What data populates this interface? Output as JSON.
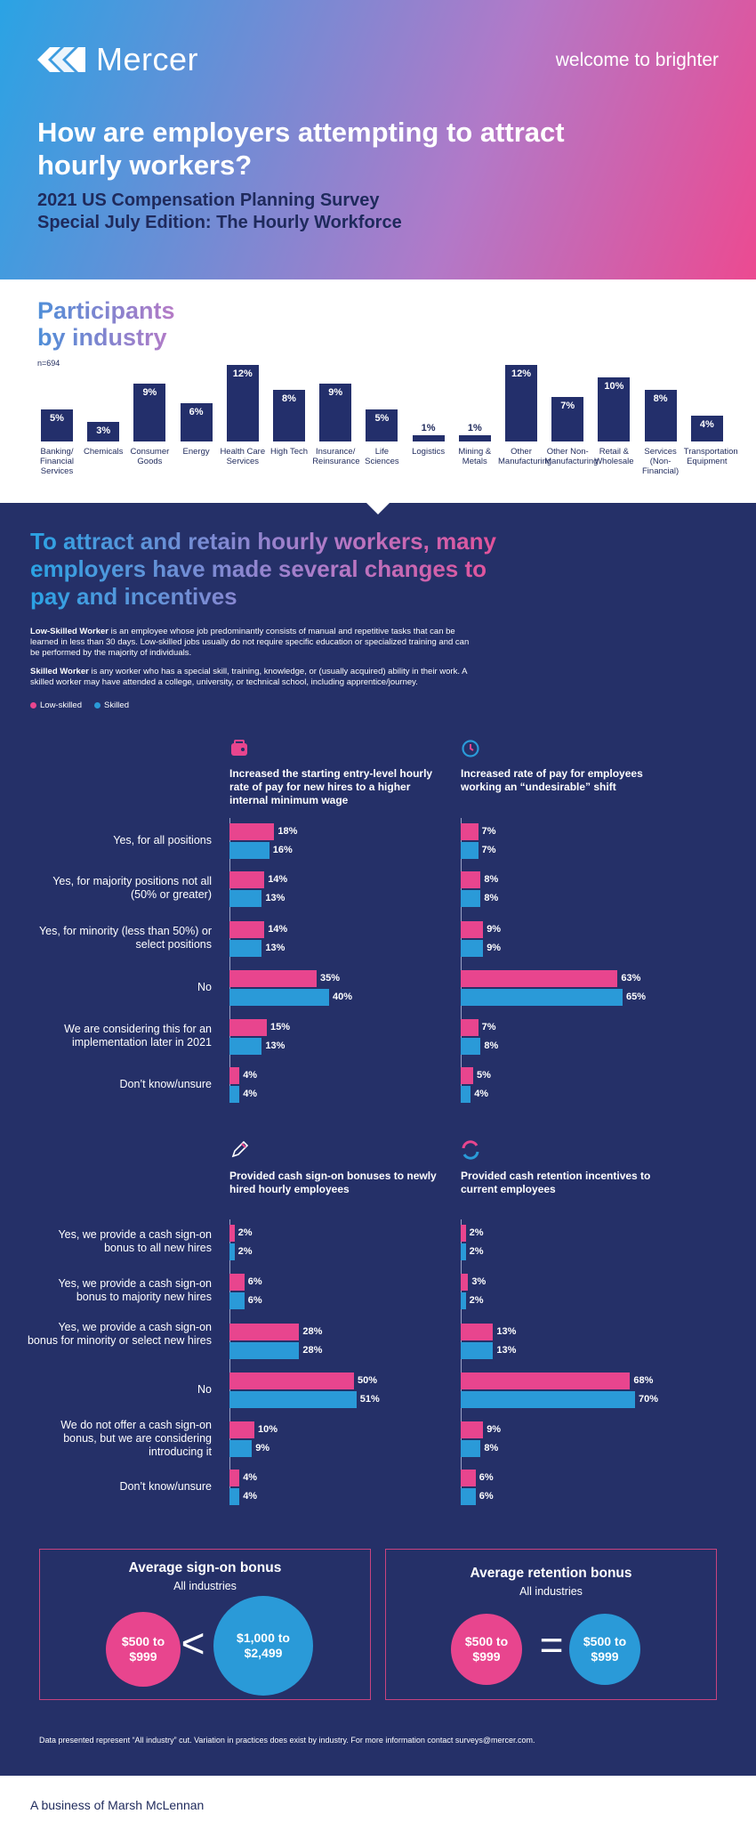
{
  "header": {
    "brand": "Mercer",
    "tagline": "welcome to brighter",
    "title": "How are employers attempting to attract hourly workers?",
    "subtitle_line1": "2021 US Compensation Planning Survey",
    "subtitle_line2": "Special July Edition: The Hourly Workforce"
  },
  "participants": {
    "title_line1": "Participants",
    "title_line2": "by industry",
    "n": "n=694",
    "bars": [
      {
        "label": "Banking/ Financial Services",
        "value": 5,
        "text": "5%"
      },
      {
        "label": "Chemicals",
        "value": 3,
        "text": "3%"
      },
      {
        "label": "Consumer Goods",
        "value": 9,
        "text": "9%"
      },
      {
        "label": "Energy",
        "value": 6,
        "text": "6%"
      },
      {
        "label": "Health Care Services",
        "value": 12,
        "text": "12%"
      },
      {
        "label": "High Tech",
        "value": 8,
        "text": "8%"
      },
      {
        "label": "Insurance/ Reinsurance",
        "value": 9,
        "text": "9%"
      },
      {
        "label": "Life Sciences",
        "value": 5,
        "text": "5%"
      },
      {
        "label": "Logistics",
        "value": 1,
        "text": "1%"
      },
      {
        "label": "Mining & Metals",
        "value": 1,
        "text": "1%"
      },
      {
        "label": "Other Manufacturing",
        "value": 12,
        "text": "12%"
      },
      {
        "label": "Other Non-Manufacturing",
        "value": 7,
        "text": "7%"
      },
      {
        "label": "Retail & Wholesale",
        "value": 10,
        "text": "10%"
      },
      {
        "label": "Services (Non-Financial)",
        "value": 8,
        "text": "8%"
      },
      {
        "label": "Transportation Equipment",
        "value": 4,
        "text": "4%"
      }
    ]
  },
  "section": {
    "heading": "To attract and retain hourly workers, many employers have made several changes to pay and incentives",
    "def1_term": "Low-Skilled Worker",
    "def1_text": " is an employee whose job predominantly consists of manual and repetitive tasks that can be learned in less than 30 days. Low-skilled jobs usually do not require specific education or specialized training and can be performed by the majority of individuals.",
    "def2_term": "Skilled Worker",
    "def2_text": " is any worker who has a special skill, training, knowledge, or (usually acquired) ability in their work. A skilled worker may have attended a college, university, or technical school, including apprentice/journey.",
    "legend_low": "Low-skilled",
    "legend_skilled": "Skilled",
    "colors": {
      "low": "#e8458e",
      "skilled": "#2a9ad8",
      "bg": "#253068"
    }
  },
  "group1": {
    "rows": [
      "Yes, for all positions",
      "Yes, for majority positions not all (50% or greater)",
      "Yes, for minority (less than 50%) or select positions",
      "No",
      "We are considering this for an implementation later in 2021",
      "Don’t know/unsure"
    ],
    "q1": {
      "icon": "wallet-icon",
      "title": "Increased the starting entry-level hourly rate of pay for new hires to a higher internal minimum wage",
      "low": [
        18,
        14,
        14,
        35,
        15,
        4
      ],
      "skilled": [
        16,
        13,
        13,
        40,
        13,
        4
      ]
    },
    "q2": {
      "icon": "clock-icon",
      "title": "Increased rate of pay for employees working an “undesirable” shift",
      "low": [
        7,
        8,
        9,
        63,
        7,
        5
      ],
      "skilled": [
        7,
        8,
        9,
        65,
        8,
        4
      ]
    }
  },
  "group2": {
    "rows": [
      "Yes, we provide a cash sign-on bonus to all new hires",
      "Yes, we provide a cash sign-on bonus to majority new hires",
      "Yes, we provide a cash sign-on bonus for minority or select new hires",
      "No",
      "We do not offer a cash sign-on bonus, but we are considering introducing it",
      "Don’t know/unsure"
    ],
    "q3": {
      "icon": "pencil-icon",
      "title": "Provided cash sign-on bonuses to newly hired hourly employees",
      "low": [
        2,
        6,
        28,
        50,
        10,
        4
      ],
      "skilled": [
        2,
        6,
        28,
        51,
        9,
        4
      ]
    },
    "q4": {
      "icon": "refresh-icon",
      "title": "Provided cash retention incentives to current employees",
      "low": [
        2,
        3,
        13,
        68,
        9,
        6
      ],
      "skilled": [
        2,
        2,
        13,
        70,
        8,
        6
      ]
    }
  },
  "bonus": {
    "signon_title": "Average sign-on bonus",
    "signon_sub": "All industries",
    "signon_low": "$500 to $999",
    "signon_cmp": "<",
    "signon_skilled": "$1,000 to $2,499",
    "retention_title": "Average retention bonus",
    "retention_sub": "All industries",
    "retention_low": "$500 to $999",
    "retention_cmp": "=",
    "retention_skilled": "$500 to $999"
  },
  "footnote": "Data presented represent “All industry” cut.  Variation in practices does exist by industry.  For more information contact surveys@mercer.com.",
  "footer": "A business of Marsh McLennan"
}
